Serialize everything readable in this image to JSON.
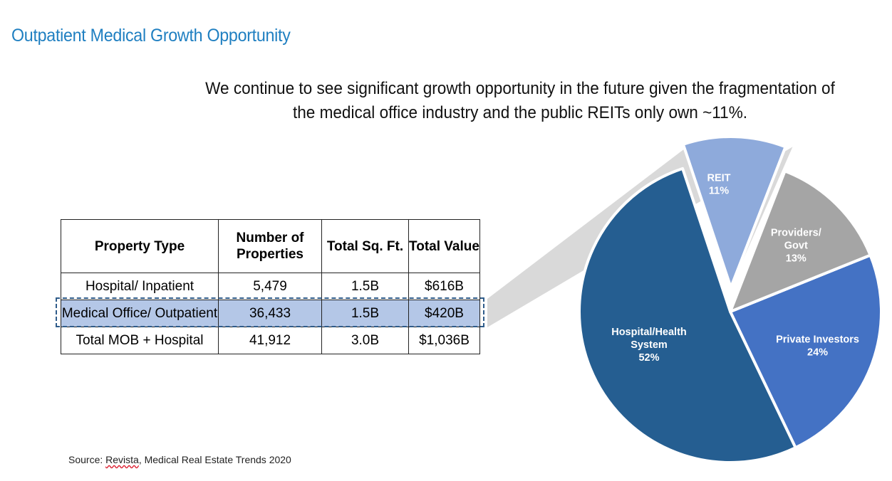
{
  "title": "Outpatient Medical Growth Opportunity",
  "subtitle_lines": [
    "We continue to see significant growth opportunity in the future given the fragmentation of",
    "the medical office industry and the public REITs only own ~11%."
  ],
  "table": {
    "headers": [
      "Property Type",
      "Number of Properties",
      "Total Sq. Ft.",
      "Total Value"
    ],
    "rows": [
      [
        "Hospital/ Inpatient",
        "5,479",
        "1.5B",
        "$616B"
      ],
      [
        "Medical Office/ Outpatient",
        "36,433",
        "1.5B",
        "$420B"
      ],
      [
        "Total MOB + Hospital",
        "41,912",
        "3.0B",
        "$1,036B"
      ]
    ],
    "highlighted_row": 1
  },
  "source": {
    "prefix": "Source: ",
    "link_word": "Revista",
    "suffix": ", Medical Real Estate Trends 2020"
  },
  "chart_data": {
    "type": "pie",
    "slices": [
      {
        "label_lines": [
          "Private Investors",
          "24%"
        ],
        "value": 24,
        "color": "#4472c4"
      },
      {
        "label_lines": [
          "Hospital/Health",
          "System",
          "52%"
        ],
        "value": 52,
        "color": "#255e91"
      },
      {
        "label_lines": [
          "REIT",
          "11%"
        ],
        "value": 11,
        "color": "#8eaadb",
        "exploded": true
      },
      {
        "label_lines": [
          "Providers/",
          "Govt",
          "13%"
        ],
        "value": 13,
        "color": "#a5a5a5"
      }
    ]
  }
}
